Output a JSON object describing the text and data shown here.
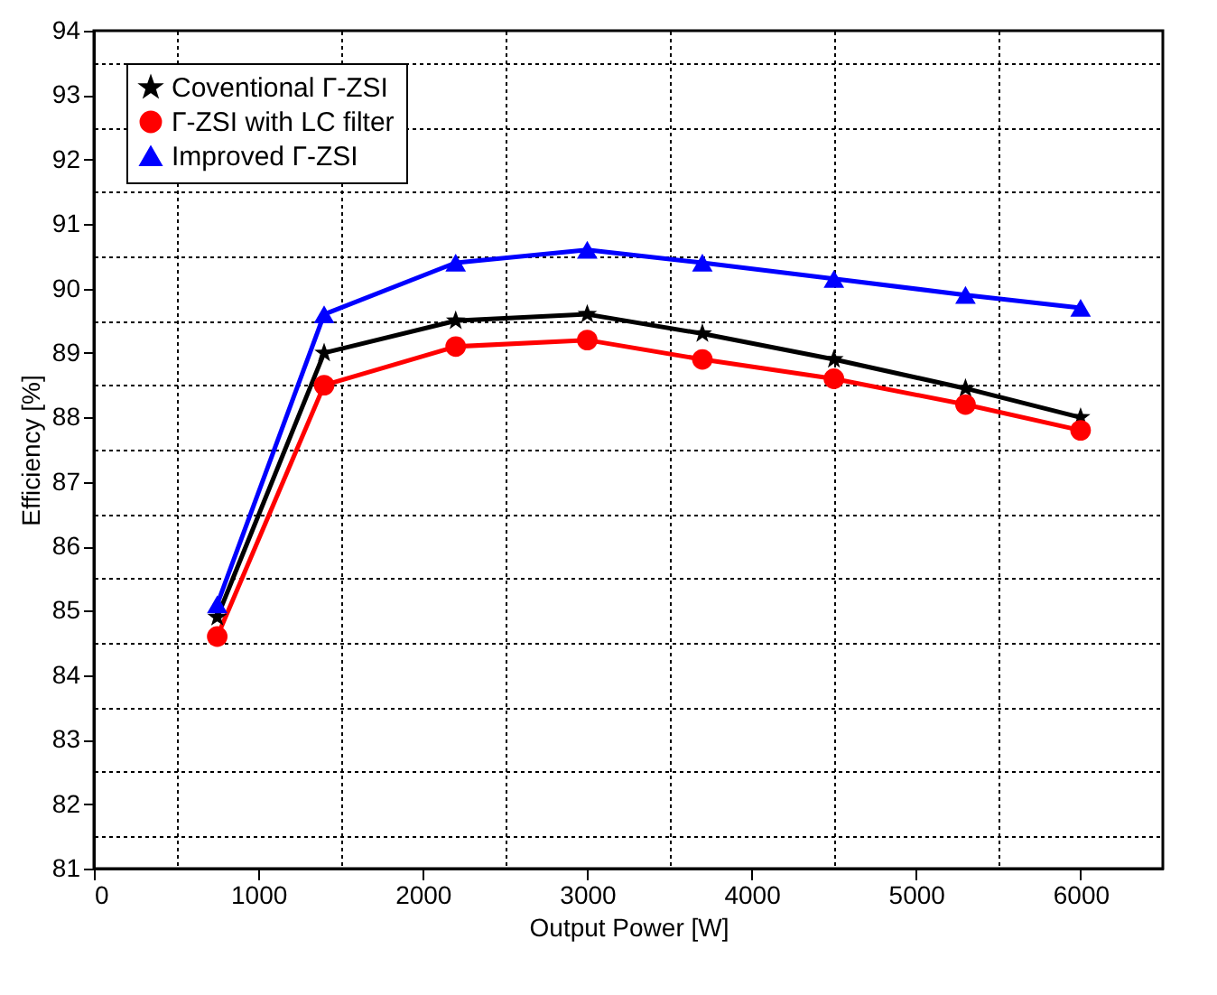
{
  "chart_data": {
    "type": "line",
    "xlabel": "Output Power [W]",
    "ylabel": "Efficiency [%]",
    "x": [
      750,
      1400,
      2200,
      3000,
      3700,
      4500,
      5300,
      6000
    ],
    "xlim": [
      0,
      6500
    ],
    "ylim": [
      81,
      94
    ],
    "xticks": [
      0,
      {
        "value": 500,
        "label": null
      },
      1000,
      {
        "value": 1500,
        "label": null
      },
      2000,
      {
        "value": 2500,
        "label": null
      },
      3000,
      {
        "value": 3500,
        "label": null
      },
      4000,
      {
        "value": 4500,
        "label": null
      },
      5000,
      {
        "value": 5500,
        "label": null
      },
      6000
    ],
    "yticks": [
      81,
      {
        "value": 81.5,
        "label": null
      },
      82,
      {
        "value": 82.5,
        "label": null
      },
      83,
      {
        "value": 83.5,
        "label": null
      },
      84,
      {
        "value": 84.5,
        "label": null
      },
      85,
      {
        "value": 85.5,
        "label": null
      },
      86,
      {
        "value": 86.5,
        "label": null
      },
      87,
      {
        "value": 87.5,
        "label": null
      },
      88,
      {
        "value": 88.5,
        "label": null
      },
      89,
      {
        "value": 89.5,
        "label": null
      },
      90,
      {
        "value": 90.5,
        "label": null
      },
      91,
      {
        "value": 91.5,
        "label": null
      },
      92,
      {
        "value": 92.5,
        "label": null
      },
      93,
      {
        "value": 93.5,
        "label": null
      },
      94
    ],
    "grid": true,
    "legend": "top left",
    "line_style": "solid",
    "series": [
      {
        "name": "Coventional Γ-ZSI",
        "color": "#000000",
        "marker": "star",
        "values": [
          84.9,
          89.0,
          89.5,
          89.6,
          89.3,
          88.9,
          88.45,
          88.0
        ]
      },
      {
        "name": "Γ-ZSI with LC filter",
        "color": "#ff0000",
        "marker": "circle",
        "values": [
          84.6,
          88.5,
          89.1,
          89.2,
          88.9,
          88.6,
          88.2,
          87.8
        ]
      },
      {
        "name": "Improved Γ-ZSI",
        "color": "#0000ff",
        "marker": "triangle",
        "values": [
          85.1,
          89.6,
          90.4,
          90.6,
          90.4,
          90.15,
          89.9,
          89.7
        ]
      }
    ]
  }
}
